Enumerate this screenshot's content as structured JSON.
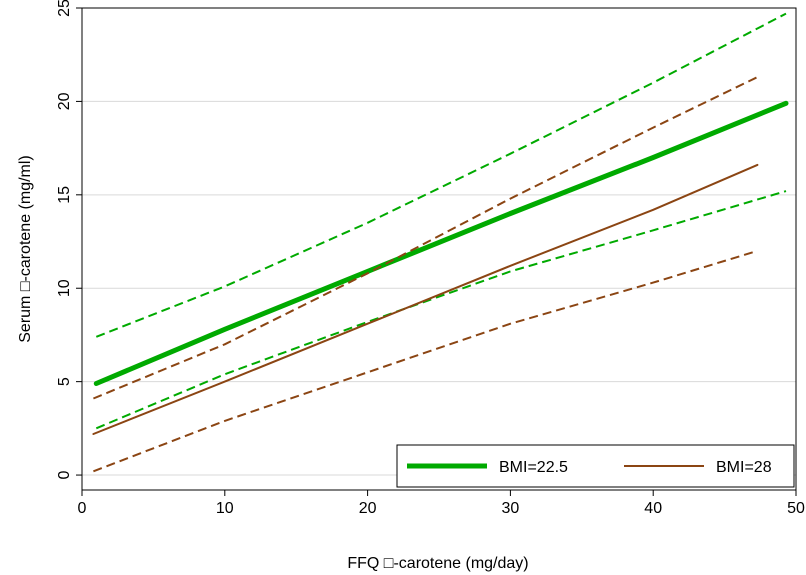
{
  "chart_data": {
    "type": "line",
    "xlabel": "FFQ □-carotene (mg/day)",
    "ylabel": "Serum □-carotene (mg/ml)",
    "xlim": [
      0,
      50
    ],
    "ylim": [
      -0.8,
      25
    ],
    "x_ticks": [
      0,
      10,
      20,
      30,
      40,
      50
    ],
    "y_ticks": [
      0,
      5,
      10,
      15,
      20,
      25
    ],
    "grid": "horizontal",
    "legend_position": "bottom-right",
    "series": [
      {
        "name": "BMI=22.5",
        "color": "#00aa00",
        "style": "solid-thick",
        "in_legend": true,
        "points": [
          [
            1,
            4.9
          ],
          [
            10,
            7.8
          ],
          [
            20,
            10.9
          ],
          [
            30,
            14.0
          ],
          [
            40,
            17.0
          ],
          [
            49.3,
            19.9
          ]
        ]
      },
      {
        "name": "",
        "color": "#00aa00",
        "style": "dashed",
        "in_legend": false,
        "points": [
          [
            1,
            7.4
          ],
          [
            10,
            10.1
          ],
          [
            20,
            13.5
          ],
          [
            30,
            17.2
          ],
          [
            40,
            21.0
          ],
          [
            49.3,
            24.7
          ]
        ]
      },
      {
        "name": "",
        "color": "#00aa00",
        "style": "dashed",
        "in_legend": false,
        "points": [
          [
            1,
            2.5
          ],
          [
            10,
            5.4
          ],
          [
            20,
            8.2
          ],
          [
            30,
            10.9
          ],
          [
            40,
            13.1
          ],
          [
            49.3,
            15.2
          ]
        ]
      },
      {
        "name": "BMI=28",
        "color": "#8b4513",
        "style": "solid",
        "in_legend": true,
        "points": [
          [
            0.8,
            2.2
          ],
          [
            10,
            5.0
          ],
          [
            20,
            8.1
          ],
          [
            30,
            11.2
          ],
          [
            40,
            14.2
          ],
          [
            47.3,
            16.6
          ]
        ]
      },
      {
        "name": "",
        "color": "#8b4513",
        "style": "dashed",
        "in_legend": false,
        "points": [
          [
            0.8,
            4.1
          ],
          [
            10,
            7.0
          ],
          [
            20,
            10.8
          ],
          [
            30,
            14.8
          ],
          [
            40,
            18.6
          ],
          [
            47.3,
            21.3
          ]
        ]
      },
      {
        "name": "",
        "color": "#8b4513",
        "style": "dashed",
        "in_legend": false,
        "points": [
          [
            0.8,
            0.2
          ],
          [
            10,
            2.9
          ],
          [
            20,
            5.5
          ],
          [
            30,
            8.1
          ],
          [
            40,
            10.3
          ],
          [
            47.3,
            12.0
          ]
        ]
      }
    ]
  }
}
